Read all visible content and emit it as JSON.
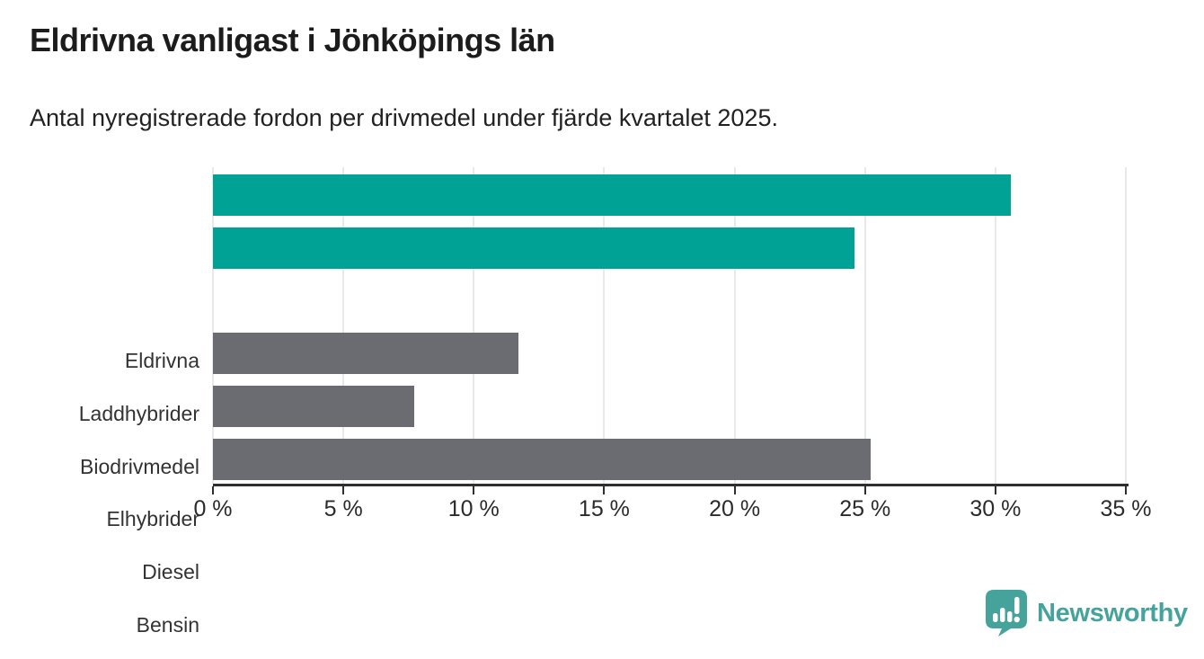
{
  "header": {
    "title": "Eldrivna vanligast i Jönköpings län",
    "subtitle": "Antal nyregistrerade fordon per drivmedel under fjärde kvartalet 2025."
  },
  "chart_data": {
    "type": "bar",
    "orientation": "horizontal",
    "title": "Eldrivna vanligast i Jönköpings län",
    "subtitle": "Antal nyregistrerade fordon per drivmedel under fjärde kvartalet 2025.",
    "categories": [
      "Eldrivna",
      "Laddhybrider",
      "Biodrivmedel",
      "Elhybrider",
      "Diesel",
      "Bensin"
    ],
    "values": [
      30.6,
      24.6,
      0,
      11.7,
      7.7,
      25.2
    ],
    "unit": "%",
    "xlim": [
      0,
      35
    ],
    "x_tick_step": 5,
    "x_tick_labels": [
      "0 %",
      "5 %",
      "10 %",
      "15 %",
      "20 %",
      "25 %",
      "30 %",
      "35 %"
    ],
    "grid": "vertical",
    "legend": "none",
    "bar_colors": [
      "#00a295",
      "#00a295",
      "#6b6b72",
      "#6b6b72",
      "#6b6b72",
      "#6b6b72"
    ]
  },
  "colors": {
    "accent_teal": "#00a295",
    "bar_gray": "#6b6b72",
    "axis": "#2f2f2f",
    "gridline": "#e9e9e9",
    "title_text": "#1c1c1c",
    "logo_teal": "#45a39b"
  },
  "branding": {
    "logo_text": "Newsworthy",
    "logo_icon": "bar-chart-speech-bubble"
  }
}
